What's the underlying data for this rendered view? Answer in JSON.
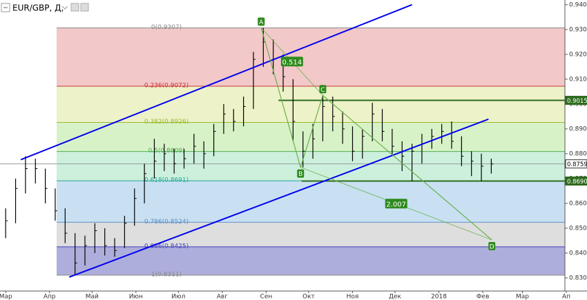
{
  "chart_data": {
    "type": "ohlc",
    "title": "EUR/GBP, Д,",
    "color": "#000000",
    "x": [
      0,
      7,
      14,
      21,
      28,
      35,
      42,
      49,
      56,
      63,
      70,
      77,
      84,
      91,
      98,
      105,
      112,
      119,
      126,
      133,
      140,
      147,
      154,
      161,
      168,
      175,
      182,
      189,
      196,
      203,
      210,
      217,
      224,
      231,
      238,
      245,
      252,
      259,
      266,
      273,
      280,
      287,
      294,
      301,
      308,
      315,
      322,
      329,
      336,
      343
    ],
    "high": [
      0.858,
      0.87,
      0.879,
      0.878,
      0.874,
      0.866,
      0.858,
      0.848,
      0.847,
      0.852,
      0.85,
      0.846,
      0.855,
      0.866,
      0.876,
      0.886,
      0.884,
      0.882,
      0.882,
      0.888,
      0.885,
      0.892,
      0.9,
      0.898,
      0.903,
      0.921,
      0.9307,
      0.926,
      0.92,
      0.91,
      0.889,
      0.892,
      0.9035,
      0.903,
      0.897,
      0.891,
      0.89,
      0.9005,
      0.898,
      0.89,
      0.885,
      0.884,
      0.888,
      0.89,
      0.892,
      0.893,
      0.887,
      0.881,
      0.88,
      0.878
    ],
    "low": [
      0.846,
      0.852,
      0.864,
      0.868,
      0.86,
      0.853,
      0.844,
      0.8315,
      0.835,
      0.84,
      0.839,
      0.8385,
      0.842,
      0.851,
      0.86,
      0.87,
      0.873,
      0.872,
      0.874,
      0.876,
      0.874,
      0.879,
      0.888,
      0.889,
      0.891,
      0.898,
      0.915,
      0.912,
      0.905,
      0.885,
      0.8745,
      0.878,
      0.885,
      0.889,
      0.884,
      0.877,
      0.878,
      0.885,
      0.885,
      0.879,
      0.873,
      0.869,
      0.876,
      0.882,
      0.884,
      0.882,
      0.875,
      0.871,
      0.869,
      0.872
    ],
    "close": [
      0.853,
      0.866,
      0.874,
      0.874,
      0.866,
      0.857,
      0.848,
      0.836,
      0.843,
      0.849,
      0.843,
      0.841,
      0.852,
      0.862,
      0.872,
      0.877,
      0.88,
      0.876,
      0.878,
      0.883,
      0.88,
      0.889,
      0.896,
      0.893,
      0.899,
      0.918,
      0.925,
      0.918,
      0.911,
      0.893,
      0.881,
      0.886,
      0.899,
      0.895,
      0.89,
      0.881,
      0.887,
      0.896,
      0.889,
      0.883,
      0.879,
      0.881,
      0.884,
      0.887,
      0.889,
      0.885,
      0.879,
      0.877,
      0.875,
      0.8759
    ],
    "xlim": [
      -4,
      395
    ],
    "xticks": [
      {
        "value": 0,
        "label": "Мар"
      },
      {
        "value": 31,
        "label": "Апр"
      },
      {
        "value": 61,
        "label": "Май"
      },
      {
        "value": 92,
        "label": "Июн"
      },
      {
        "value": 122,
        "label": "Июл"
      },
      {
        "value": 153,
        "label": "Авг"
      },
      {
        "value": 184,
        "label": "Сен"
      },
      {
        "value": 214,
        "label": "Окт"
      },
      {
        "value": 245,
        "label": "Ноя"
      },
      {
        "value": 275,
        "label": "Дек"
      },
      {
        "value": 306,
        "label": "2018"
      },
      {
        "value": 337,
        "label": "Фев"
      },
      {
        "value": 365,
        "label": "Мар"
      },
      {
        "value": 396,
        "label": "Ап"
      }
    ],
    "ylim": [
      0.8247,
      0.9419
    ],
    "yticks": [
      {
        "value": 0.83,
        "label": "0.8300"
      },
      {
        "value": 0.84,
        "label": "0.8400"
      },
      {
        "value": 0.85,
        "label": "0.8500"
      },
      {
        "value": 0.86,
        "label": "0.8600"
      },
      {
        "value": 0.87,
        "label": "0.8700"
      },
      {
        "value": 0.88,
        "label": "0.8800"
      },
      {
        "value": 0.89,
        "label": "0.8900"
      },
      {
        "value": 0.9,
        "label": "0.9000"
      },
      {
        "value": 0.91,
        "label": "0.9100"
      },
      {
        "value": 0.92,
        "label": "0.9200"
      },
      {
        "value": 0.93,
        "label": "0.9300"
      },
      {
        "value": 0.94,
        "label": "0.9400"
      }
    ],
    "fib_start": 36,
    "fib_levels": [
      {
        "label": "0(0.9307)",
        "price": 0.9307,
        "color": "#888888"
      },
      {
        "label": "0.236(0.9072)",
        "price": 0.9072,
        "color": "#cc3333"
      },
      {
        "label": "0.382(0.8926)",
        "price": 0.8926,
        "color": "#9ab82c"
      },
      {
        "label": "0.5(0.8809)",
        "price": 0.8809,
        "color": "#4caf50"
      },
      {
        "label": "0.618(0.8691)",
        "price": 0.8691,
        "color": "#26a69a"
      },
      {
        "label": "0.786(0.8524)",
        "price": 0.8524,
        "color": "#5b8fc6"
      },
      {
        "label": "0.886(0.8425)",
        "price": 0.8425,
        "color": "#3f3fbf"
      },
      {
        "label": "1(0.8311)",
        "price": 0.8311,
        "color": "#888888"
      }
    ],
    "band_colors": [
      "#f2c8c8",
      "#edf2c8",
      "#d8f2c8",
      "#ccf0dc",
      "#c8e0f2",
      "#dedede",
      "#aeaedc"
    ],
    "trendlines": [
      {
        "color": "#0000ee",
        "points": [
          [
            10.7,
            0.8776
          ],
          [
            287,
            0.94
          ]
        ]
      },
      {
        "color": "#0000ee",
        "points": [
          [
            44.9,
            0.8303
          ],
          [
            341,
            0.8939
          ]
        ]
      }
    ],
    "hlines": [
      {
        "start": 192.7,
        "price": {
          "value": 0.9015,
          "label": "0.9015"
        },
        "color": "#2e6b1e"
      },
      {
        "start": 209,
        "price": {
          "value": 0.869,
          "label": "0.8690"
        },
        "color": "#2e6b1e"
      },
      {
        "start": -4,
        "price": {
          "value": 0.8759,
          "label": "0.8759"
        },
        "color": "#999999"
      }
    ],
    "pattern": {
      "color": "#6ab04c",
      "points": [
        {
          "label": "A",
          "x": 180.5,
          "y": 0.9307
        },
        {
          "label": "B",
          "x": 208.3,
          "y": 0.8745
        },
        {
          "label": "C",
          "x": 224,
          "y": 0.9035
        },
        {
          "label": "D",
          "x": 343.4,
          "y": 0.8453
        }
      ],
      "ratios": [
        "0.514",
        "2.007"
      ]
    }
  }
}
